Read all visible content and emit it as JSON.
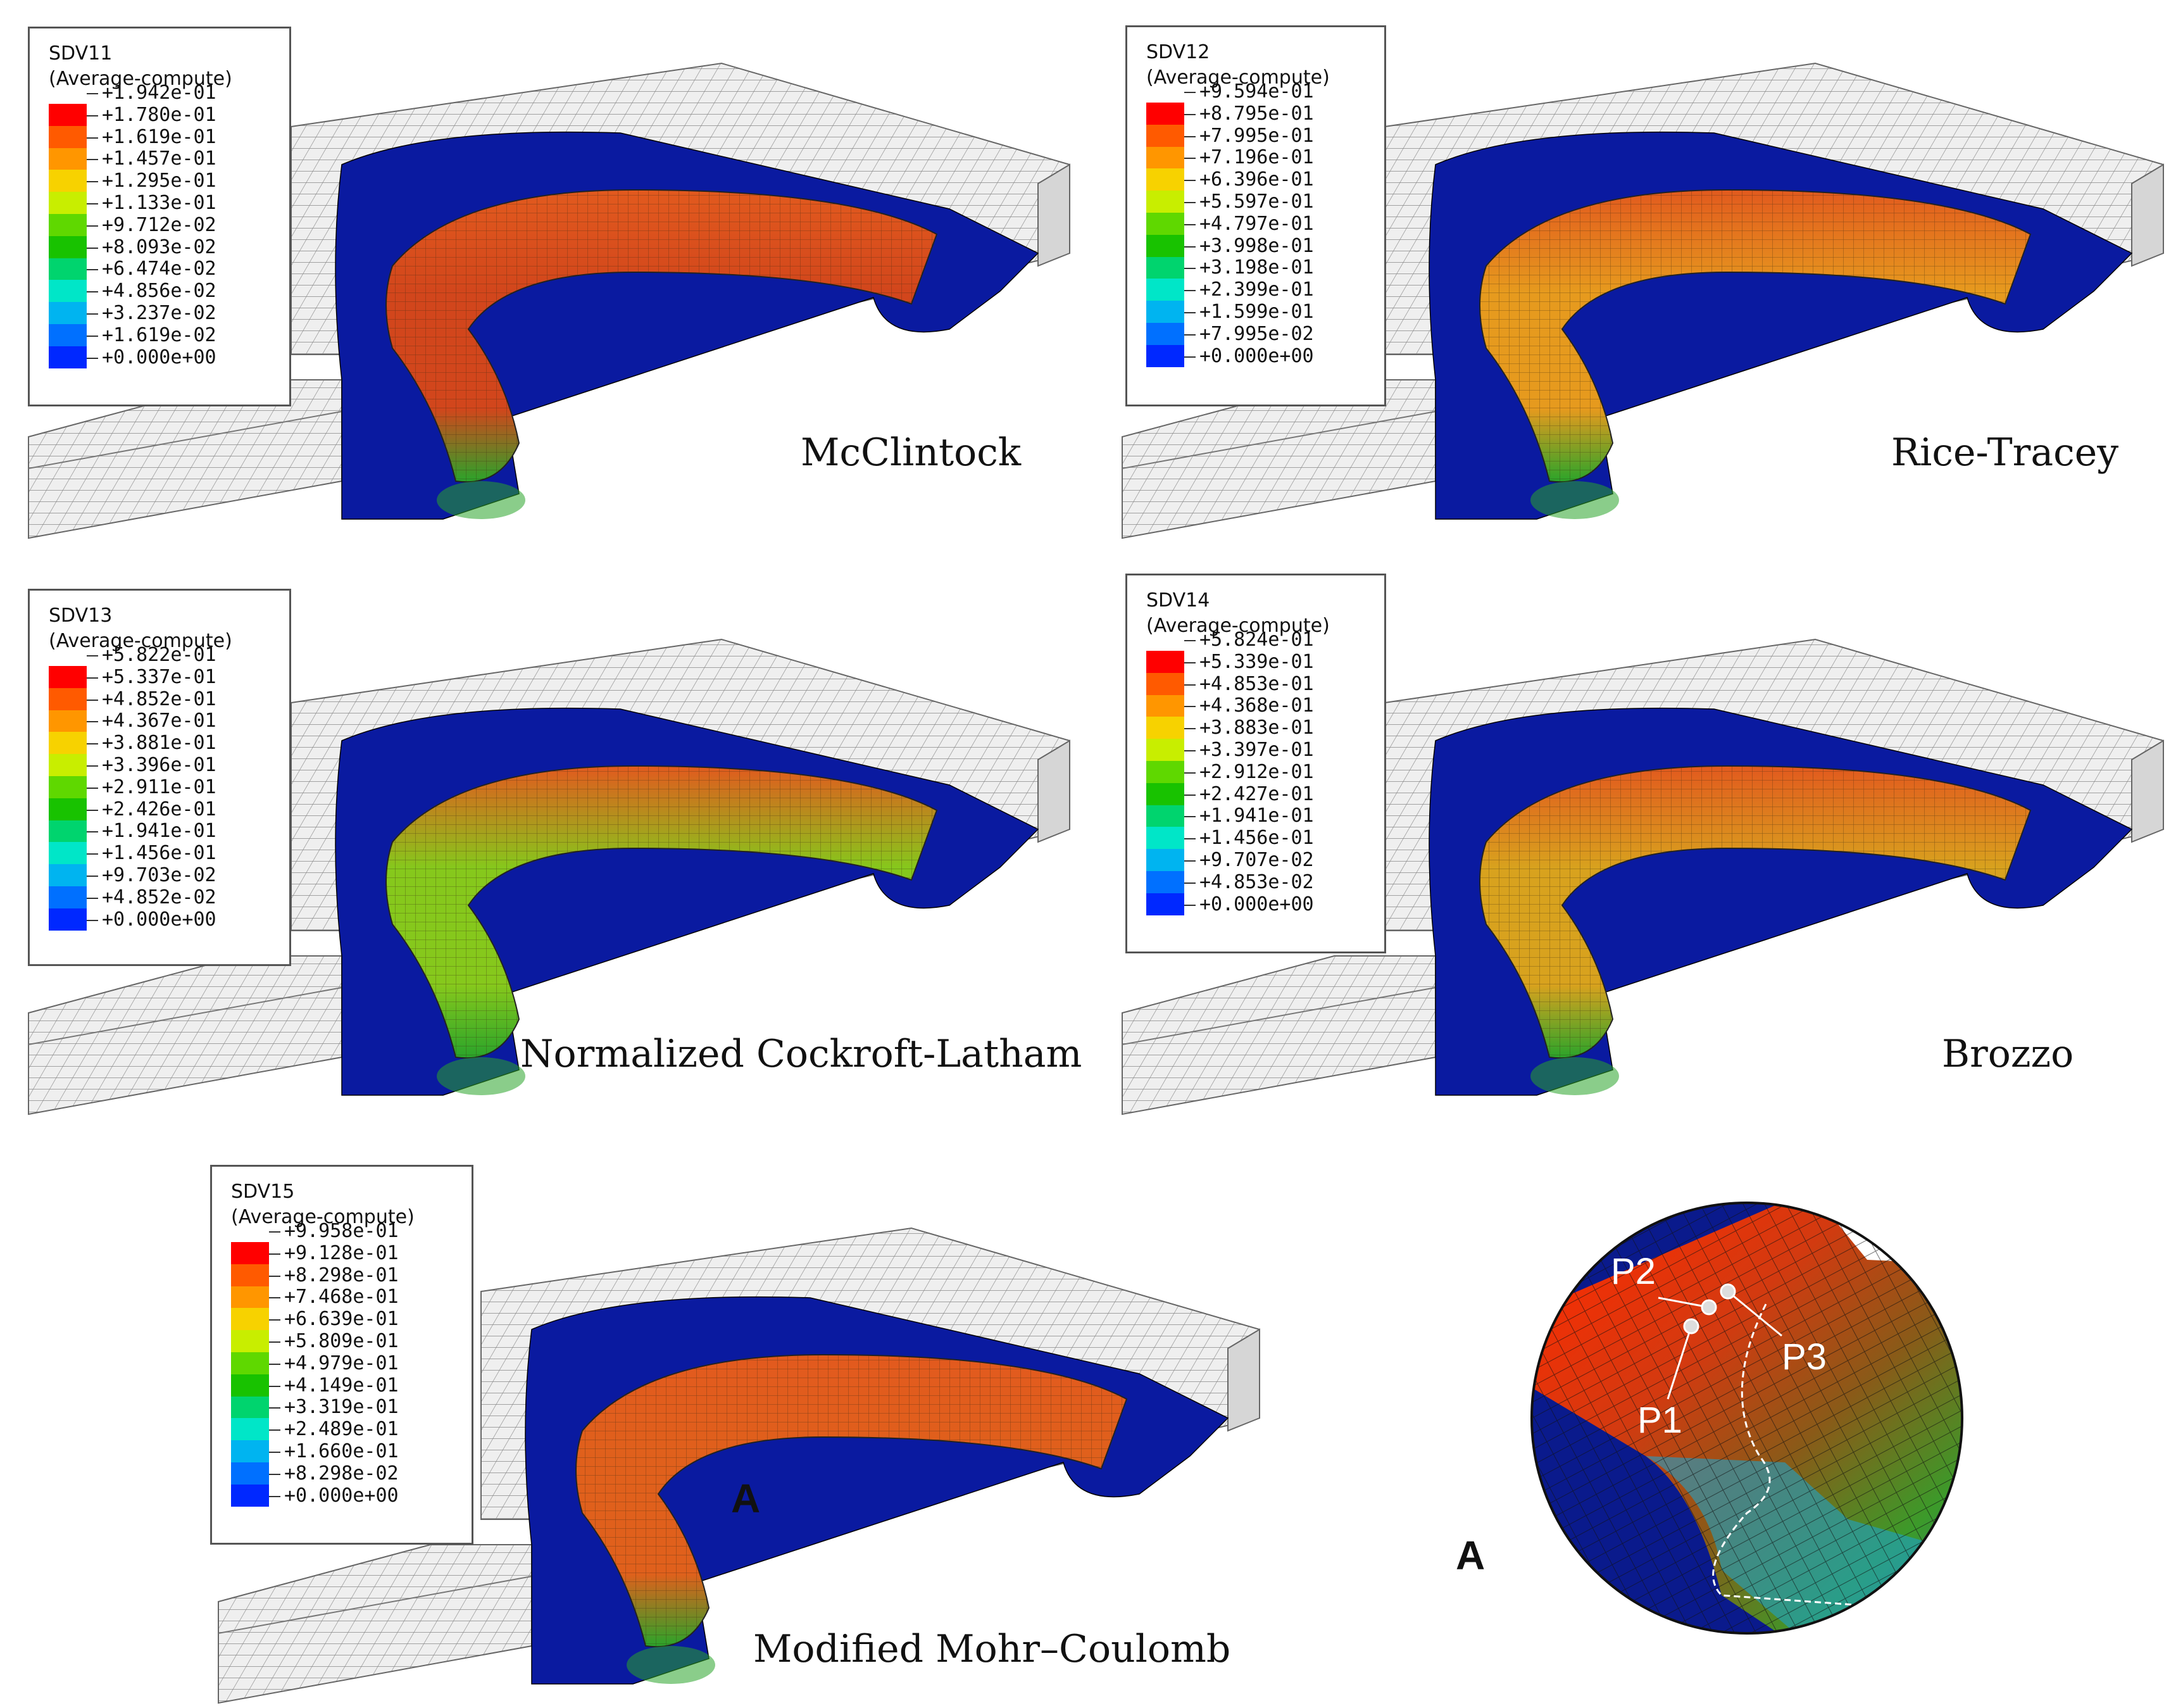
{
  "panels": [
    {
      "variable": "SDV11",
      "mode": "(Average-compute)",
      "values": [
        "+1.942e-01",
        "+1.780e-01",
        "+1.619e-01",
        "+1.457e-01",
        "+1.295e-01",
        "+1.133e-01",
        "+9.712e-02",
        "+8.093e-02",
        "+6.474e-02",
        "+4.856e-02",
        "+3.237e-02",
        "+1.619e-02",
        "+0.000e+00"
      ],
      "caption": "McClintock",
      "dominant_color": "#d2461c"
    },
    {
      "variable": "SDV12",
      "mode": "(Average-compute)",
      "values": [
        "+9.594e-01",
        "+8.795e-01",
        "+7.995e-01",
        "+7.196e-01",
        "+6.396e-01",
        "+5.597e-01",
        "+4.797e-01",
        "+3.998e-01",
        "+3.198e-01",
        "+2.399e-01",
        "+1.599e-01",
        "+7.995e-02",
        "+0.000e+00"
      ],
      "caption": "Rice-Tracey",
      "dominant_color": "#e69a1e"
    },
    {
      "variable": "SDV13",
      "mode": "(Average-compute)",
      "values": [
        "+5.822e-01",
        "+5.337e-01",
        "+4.852e-01",
        "+4.367e-01",
        "+3.881e-01",
        "+3.396e-01",
        "+2.911e-01",
        "+2.426e-01",
        "+1.941e-01",
        "+1.456e-01",
        "+9.703e-02",
        "+4.852e-02",
        "+0.000e+00"
      ],
      "caption": "Normalized Cockroft-Latham",
      "dominant_color": "#86c81c"
    },
    {
      "variable": "SDV14",
      "mode": "(Average-compute)",
      "values": [
        "+5.824e-01",
        "+5.339e-01",
        "+4.853e-01",
        "+4.368e-01",
        "+3.883e-01",
        "+3.397e-01",
        "+2.912e-01",
        "+2.427e-01",
        "+1.941e-01",
        "+1.456e-01",
        "+9.707e-02",
        "+4.853e-02",
        "+0.000e+00"
      ],
      "caption": "Brozzo",
      "dominant_color": "#d8a21e"
    },
    {
      "variable": "SDV15",
      "mode": "(Average-compute)",
      "values": [
        "+9.958e-01",
        "+9.128e-01",
        "+8.298e-01",
        "+7.468e-01",
        "+6.639e-01",
        "+5.809e-01",
        "+4.979e-01",
        "+4.149e-01",
        "+3.319e-01",
        "+2.489e-01",
        "+1.660e-01",
        "+8.298e-02",
        "+0.000e+00"
      ],
      "caption": "Modified Mohr–Coulomb",
      "dominant_color": "#e0601c"
    }
  ],
  "colorbar": [
    "#ff0000",
    "#ff5a00",
    "#ff9600",
    "#f7d200",
    "#c8ee00",
    "#5fd800",
    "#18c200",
    "#00d46e",
    "#00e6c8",
    "#00b4f0",
    "#0070ff",
    "#0028ff",
    "#0000c8"
  ],
  "detail": {
    "marker_label": "A",
    "inset_label": "A",
    "points": [
      "P1",
      "P2",
      "P3"
    ]
  }
}
